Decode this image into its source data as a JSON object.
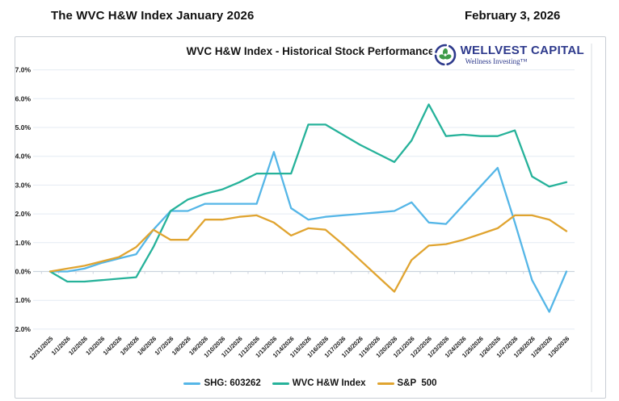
{
  "page": {
    "header_left": "The WVC H&W Index January 2026",
    "header_right": "February 3, 2026"
  },
  "logo": {
    "name": "WELLVEST CAPITAL",
    "tagline": "Wellness Investing™",
    "navy": "#2e3a8c",
    "green": "#3e9b49"
  },
  "chart_data": {
    "type": "line",
    "title": "WVC H&W Index - Historical Stock Performance",
    "x": [
      "12/31/2025",
      "1/1/2026",
      "1/2/2026",
      "1/3/2026",
      "1/4/2026",
      "1/5/2026",
      "1/6/2026",
      "1/7/2026",
      "1/8/2026",
      "1/9/2026",
      "1/10/2026",
      "1/11/2026",
      "1/12/2026",
      "1/13/2026",
      "1/14/2026",
      "1/15/2026",
      "1/16/2026",
      "1/17/2026",
      "1/18/2026",
      "1/19/2026",
      "1/20/2026",
      "1/21/2026",
      "1/22/2026",
      "1/23/2026",
      "1/24/2026",
      "1/25/2026",
      "1/26/2026",
      "1/27/2026",
      "1/28/2026",
      "1/29/2026",
      "1/30/2026"
    ],
    "series": [
      {
        "name": "SHG: 603262",
        "color": "#55b6e7",
        "values": [
          0.0,
          0.0,
          0.1,
          0.3,
          0.45,
          0.6,
          1.45,
          2.1,
          2.1,
          2.35,
          2.35,
          2.35,
          2.35,
          4.15,
          2.2,
          1.8,
          1.9,
          1.95,
          2.0,
          2.05,
          2.1,
          2.4,
          1.7,
          1.65,
          2.3,
          2.95,
          3.6,
          1.7,
          -0.3,
          -1.4,
          0.0
        ]
      },
      {
        "name": "WVC H&W Index",
        "color": "#26b29a",
        "values": [
          0.0,
          -0.35,
          -0.35,
          -0.3,
          -0.25,
          -0.2,
          0.85,
          2.1,
          2.5,
          2.7,
          2.85,
          3.1,
          3.4,
          3.4,
          3.4,
          5.1,
          5.1,
          4.75,
          4.4,
          4.1,
          3.8,
          4.55,
          5.8,
          4.7,
          4.75,
          4.7,
          4.7,
          4.9,
          3.3,
          2.95,
          3.1
        ]
      },
      {
        "name": "S&P  500",
        "color": "#e0a430",
        "values": [
          0.0,
          0.1,
          0.2,
          0.35,
          0.5,
          0.85,
          1.45,
          1.1,
          1.1,
          1.8,
          1.8,
          1.9,
          1.95,
          1.7,
          1.25,
          1.5,
          1.45,
          0.95,
          0.4,
          -0.15,
          -0.7,
          0.4,
          0.9,
          0.95,
          1.1,
          1.3,
          1.5,
          1.95,
          1.95,
          1.8,
          1.4
        ]
      }
    ],
    "xlabel": "",
    "ylabel": "",
    "ylim": [
      -2,
      7
    ],
    "ytick_step": 1,
    "ytick_format": "percent_1dp",
    "grid": true,
    "legend_position": "bottom"
  },
  "colors": {
    "gridline": "#e4ebf3",
    "zero_axis": "#ccd4de",
    "axis_text": "#1a1a1a",
    "plot_right_border": "#d9dde2"
  }
}
